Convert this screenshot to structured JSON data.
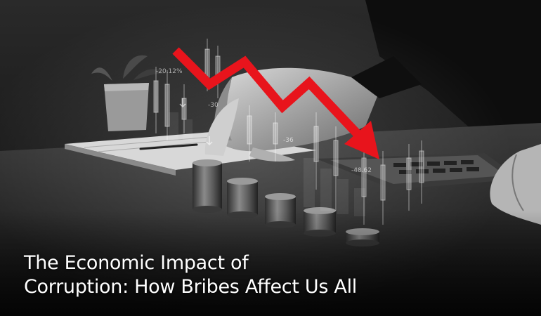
{
  "headline": {
    "line1": "The Economic Impact of",
    "line2": "Corruption: How Bribes Affect Us All"
  },
  "overlay_labels": {
    "percent": "-20.12%",
    "value_left": "-30",
    "value_mid": "-36",
    "value_right": "-48.62"
  },
  "colors": {
    "arrow": "#e8141c",
    "text": "#ffffff",
    "background": "#141414"
  }
}
